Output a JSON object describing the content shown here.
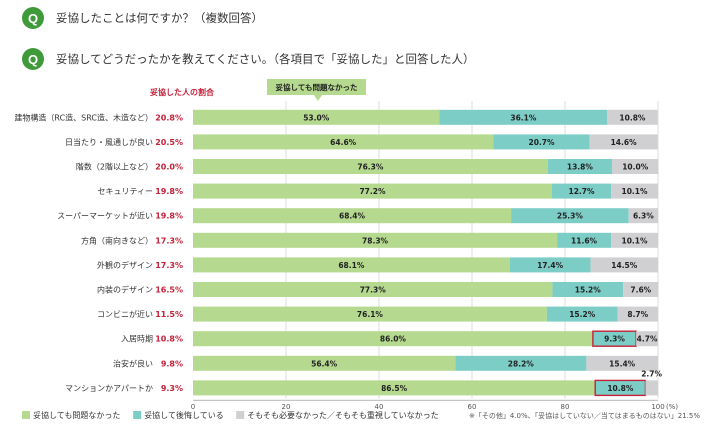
{
  "questions": [
    {
      "badge": "Q",
      "text": "妥協したことは何ですか？（複数回答）"
    },
    {
      "badge": "Q",
      "text": "妥協してどうだったかを教えてください。（各項目で「妥協した」と回答した人）"
    }
  ],
  "colors": {
    "green": "#b5d98e",
    "teal": "#7dcdc7",
    "gray": "#d0d0d2",
    "red": "#c4223a",
    "badge": "#3f9b3a",
    "callout": "#b5d98e"
  },
  "chart_data": {
    "type": "bar",
    "orientation": "horizontal",
    "stacked": true,
    "categories": [
      "建物構造（RC造、SRC造、木造など）",
      "日当たり・風通しが良い",
      "階数（2階以上など）",
      "セキュリティー",
      "スーパーマーケットが近い",
      "方角（南向きなど）",
      "外観のデザイン",
      "内装のデザイン",
      "コンビニが近い",
      "入居時期",
      "治安が良い",
      "マンションかアパートか"
    ],
    "share_header": "妥協した人の割合",
    "share": [
      "20.8%",
      "20.5%",
      "20.0%",
      "19.8%",
      "19.8%",
      "17.3%",
      "17.3%",
      "16.5%",
      "11.5%",
      "10.8%",
      "9.8%",
      "9.3%"
    ],
    "series": [
      {
        "name": "妥協しても問題なかった",
        "values": [
          53.0,
          64.6,
          76.3,
          77.2,
          68.4,
          78.3,
          68.1,
          77.3,
          76.1,
          86.0,
          56.4,
          86.5
        ],
        "labels": [
          "53.0%",
          "64.6%",
          "76.3%",
          "77.2%",
          "68.4%",
          "78.3%",
          "68.1%",
          "77.3%",
          "76.1%",
          "86.0%",
          "56.4%",
          "86.5%"
        ]
      },
      {
        "name": "妥協して後悔している",
        "values": [
          36.1,
          20.7,
          13.8,
          12.7,
          25.3,
          11.6,
          17.4,
          15.2,
          15.2,
          9.3,
          28.2,
          10.8
        ],
        "labels": [
          "36.1%",
          "20.7%",
          "13.8%",
          "12.7%",
          "25.3%",
          "11.6%",
          "17.4%",
          "15.2%",
          "15.2%",
          "9.3%",
          "28.2%",
          "10.8%"
        ]
      },
      {
        "name": "そもそも必要なかった／そもそも重視していなかった",
        "values": [
          10.8,
          14.6,
          10.0,
          10.1,
          6.3,
          10.1,
          14.5,
          7.6,
          8.7,
          4.7,
          15.4,
          2.7
        ],
        "labels": [
          "10.8%",
          "14.6%",
          "10.0%",
          "10.1%",
          "6.3%",
          "10.1%",
          "14.5%",
          "7.6%",
          "8.7%",
          "4.7%",
          "15.4%",
          "2.7%"
        ]
      }
    ],
    "highlighted": [
      {
        "row": "入居時期",
        "series": "妥協して後悔している"
      },
      {
        "row": "マンションかアパートか",
        "series": "妥協して後悔している"
      }
    ],
    "xticks": [
      0,
      20,
      40,
      60,
      80,
      100
    ],
    "xtick_labels": [
      "0",
      "20",
      "40",
      "60",
      "80",
      "100"
    ],
    "x_unit": "(%)",
    "xlim": [
      0,
      100
    ],
    "callout": "妥協しても問題なかった",
    "footnote": "※「その他」4.0%、「妥協はしていない／当てはまるものはない」21.5%",
    "legend_position": "bottom"
  }
}
